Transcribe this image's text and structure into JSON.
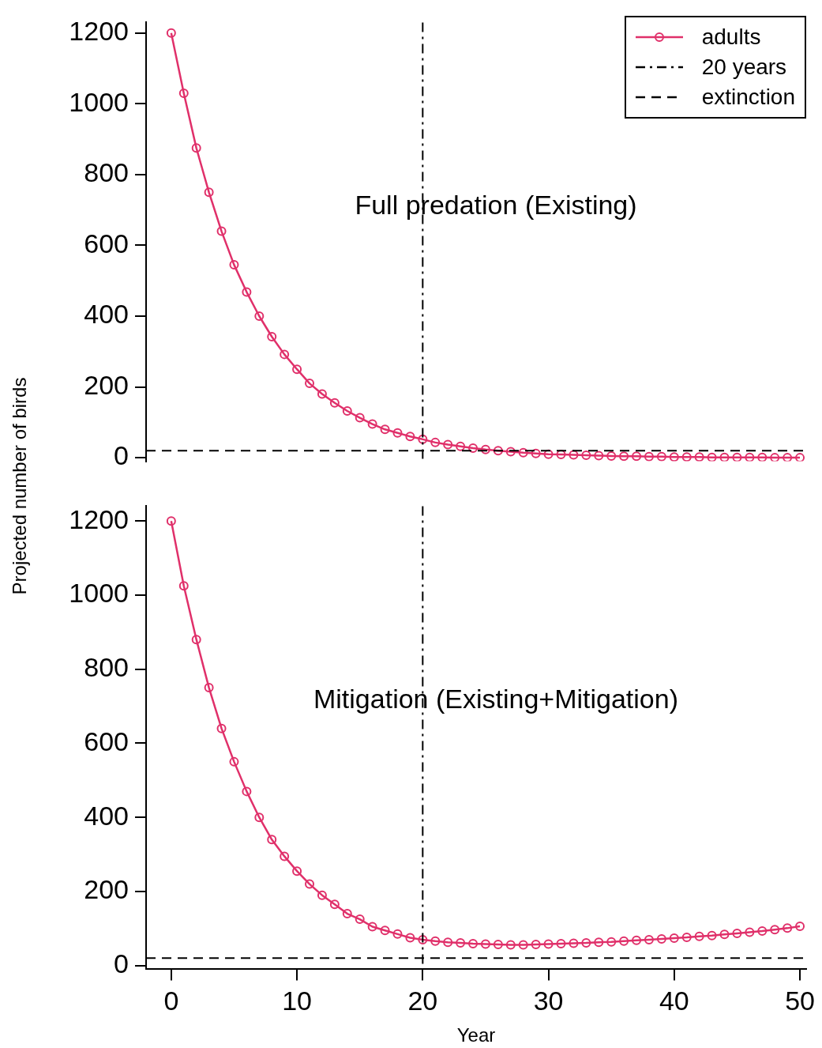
{
  "chart_data": [
    {
      "type": "line",
      "ylabel": "Projected number of birds",
      "annotations": [
        "Full predation (Existing)"
      ],
      "x": [
        0,
        1,
        2,
        3,
        4,
        5,
        6,
        7,
        8,
        9,
        10,
        11,
        12,
        13,
        14,
        15,
        16,
        17,
        18,
        19,
        20,
        21,
        22,
        23,
        24,
        25,
        26,
        27,
        28,
        29,
        30,
        31,
        32,
        33,
        34,
        35,
        36,
        37,
        38,
        39,
        40,
        41,
        42,
        43,
        44,
        45,
        46,
        47,
        48,
        49,
        50
      ],
      "series": [
        {
          "name": "adults",
          "color": "#e0306a",
          "values": [
            1200,
            1030,
            875,
            750,
            640,
            545,
            468,
            400,
            342,
            292,
            250,
            210,
            180,
            155,
            132,
            113,
            95,
            80,
            70,
            60,
            52,
            43,
            37,
            32,
            27,
            23,
            20,
            17,
            14,
            12,
            10,
            9,
            8,
            7,
            6,
            5,
            4,
            4,
            3,
            3,
            2,
            2,
            2,
            1,
            1,
            1,
            1,
            1,
            0,
            0,
            0
          ]
        }
      ],
      "marker": "circle",
      "line_style": "solid",
      "xlim": [
        -2,
        50.5
      ],
      "ylim": [
        -10,
        1230
      ],
      "yticks": [
        0,
        200,
        400,
        600,
        800,
        1000,
        1200
      ],
      "tick_labels": "y",
      "grid": false,
      "legend": "top right",
      "ref_lines": [
        {
          "axis": "x",
          "value": 20,
          "label": "20 years",
          "line_style": "dashdot",
          "color": "#000000"
        },
        {
          "axis": "y",
          "value": 20,
          "label": "extinction",
          "line_style": "dashed",
          "color": "#000000"
        }
      ]
    },
    {
      "type": "line",
      "xlabel": "Year",
      "annotations": [
        "Mitigation (Existing+Mitigation)"
      ],
      "x": [
        0,
        1,
        2,
        3,
        4,
        5,
        6,
        7,
        8,
        9,
        10,
        11,
        12,
        13,
        14,
        15,
        16,
        17,
        18,
        19,
        20,
        21,
        22,
        23,
        24,
        25,
        26,
        27,
        28,
        29,
        30,
        31,
        32,
        33,
        34,
        35,
        36,
        37,
        38,
        39,
        40,
        41,
        42,
        43,
        44,
        45,
        46,
        47,
        48,
        49,
        50
      ],
      "series": [
        {
          "color": "#e0306a",
          "values": [
            1200,
            1025,
            880,
            750,
            640,
            550,
            470,
            400,
            340,
            295,
            255,
            220,
            190,
            165,
            140,
            125,
            105,
            95,
            85,
            75,
            70,
            66,
            63,
            61,
            59,
            58,
            57,
            56,
            56,
            57,
            58,
            59,
            60,
            61,
            63,
            64,
            66,
            68,
            70,
            72,
            74,
            76,
            79,
            81,
            84,
            87,
            90,
            93,
            97,
            101,
            106
          ]
        }
      ],
      "marker": "circle",
      "line_style": "solid",
      "xlim": [
        -2,
        50.5
      ],
      "ylim": [
        -10,
        1240
      ],
      "xticks": [
        0,
        10,
        20,
        30,
        40,
        50
      ],
      "yticks": [
        0,
        200,
        400,
        600,
        800,
        1000,
        1200
      ],
      "grid": false,
      "ref_lines": [
        {
          "axis": "x",
          "value": 20,
          "line_style": "dashdot",
          "color": "#000000"
        },
        {
          "axis": "y",
          "value": 20,
          "line_style": "dashed",
          "color": "#000000"
        }
      ]
    }
  ]
}
